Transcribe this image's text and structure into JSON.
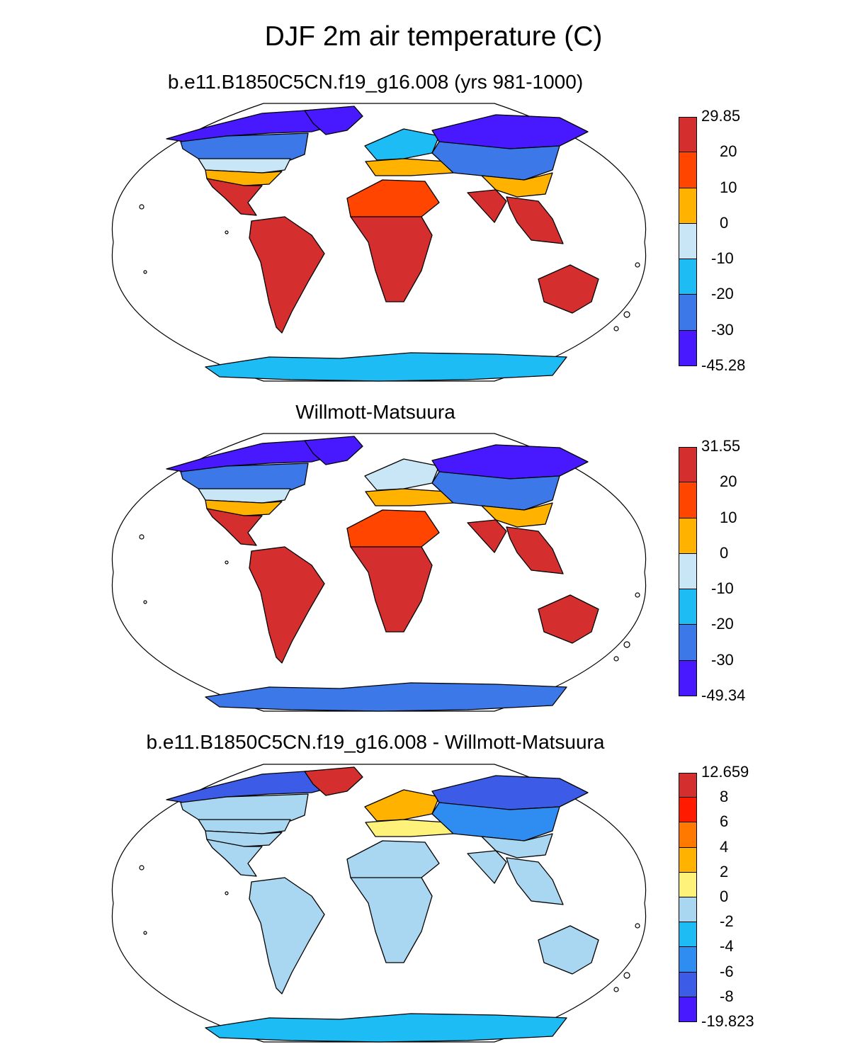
{
  "title": "DJF 2m air temperature (C)",
  "panels": [
    {
      "id": "model",
      "title": "b.e11.B1850C5CN.f19_g16.008 (yrs 981-1000)",
      "colorbar": {
        "labels": [
          "29.85",
          "20",
          "10",
          "0",
          "-10",
          "-20",
          "-30",
          "-45.28"
        ],
        "colors": [
          "#d42e2e",
          "#ff4500",
          "#ffb300",
          "#c8e6f5",
          "#1ebcf5",
          "#3c78e8",
          "#4818ff"
        ]
      },
      "regions": {
        "canada_north": "#4818ff",
        "canada_mid": "#3c78e8",
        "us_north": "#c8e6f5",
        "us_south": "#ffb300",
        "mexico": "#d42e2e",
        "south_america": "#d42e2e",
        "greenland": "#4818ff",
        "europe_north": "#1ebcf5",
        "europe_south": "#ffb300",
        "siberia": "#4818ff",
        "central_asia": "#3c78e8",
        "china": "#ffb300",
        "africa_north": "#ff4500",
        "africa_south": "#d42e2e",
        "india": "#d42e2e",
        "se_asia": "#d42e2e",
        "australia": "#d42e2e",
        "antarctica": "#1ebcf5"
      }
    },
    {
      "id": "obs",
      "title": "Willmott-Matsuura",
      "colorbar": {
        "labels": [
          "31.55",
          "20",
          "10",
          "0",
          "-10",
          "-20",
          "-30",
          "-49.34"
        ],
        "colors": [
          "#d42e2e",
          "#ff4500",
          "#ffb300",
          "#c8e6f5",
          "#1ebcf5",
          "#3c78e8",
          "#4818ff"
        ]
      },
      "regions": {
        "canada_north": "#4818ff",
        "canada_mid": "#3c78e8",
        "us_north": "#c8e6f5",
        "us_south": "#ffb300",
        "mexico": "#d42e2e",
        "south_america": "#d42e2e",
        "greenland": "#4818ff",
        "europe_north": "#c8e6f5",
        "europe_south": "#ffb300",
        "siberia": "#4818ff",
        "central_asia": "#3c78e8",
        "china": "#ffb300",
        "africa_north": "#ff4500",
        "africa_south": "#d42e2e",
        "india": "#d42e2e",
        "se_asia": "#d42e2e",
        "australia": "#d42e2e",
        "antarctica": "#3c78e8"
      }
    },
    {
      "id": "diff",
      "title": "b.e11.B1850C5CN.f19_g16.008 - Willmott-Matsuura",
      "colorbar": {
        "labels": [
          "12.659",
          "8",
          "6",
          "4",
          "2",
          "0",
          "-2",
          "-4",
          "-6",
          "-8",
          "-19.823"
        ],
        "colors": [
          "#d42e2e",
          "#ff1a00",
          "#ff7800",
          "#ffb300",
          "#fff27a",
          "#a9d6f0",
          "#1ebcf5",
          "#2f8cf0",
          "#3c5ce8",
          "#4818ff"
        ]
      },
      "regions": {
        "canada_north": "#3c5ce8",
        "canada_mid": "#a9d6f0",
        "us_north": "#a9d6f0",
        "us_south": "#a9d6f0",
        "mexico": "#a9d6f0",
        "south_america": "#a9d6f0",
        "greenland": "#d42e2e",
        "europe_north": "#ffb300",
        "europe_south": "#fff27a",
        "siberia": "#3c5ce8",
        "central_asia": "#2f8cf0",
        "china": "#a9d6f0",
        "africa_north": "#a9d6f0",
        "africa_south": "#a9d6f0",
        "india": "#a9d6f0",
        "se_asia": "#a9d6f0",
        "australia": "#a9d6f0",
        "antarctica": "#1ebcf5"
      }
    }
  ]
}
